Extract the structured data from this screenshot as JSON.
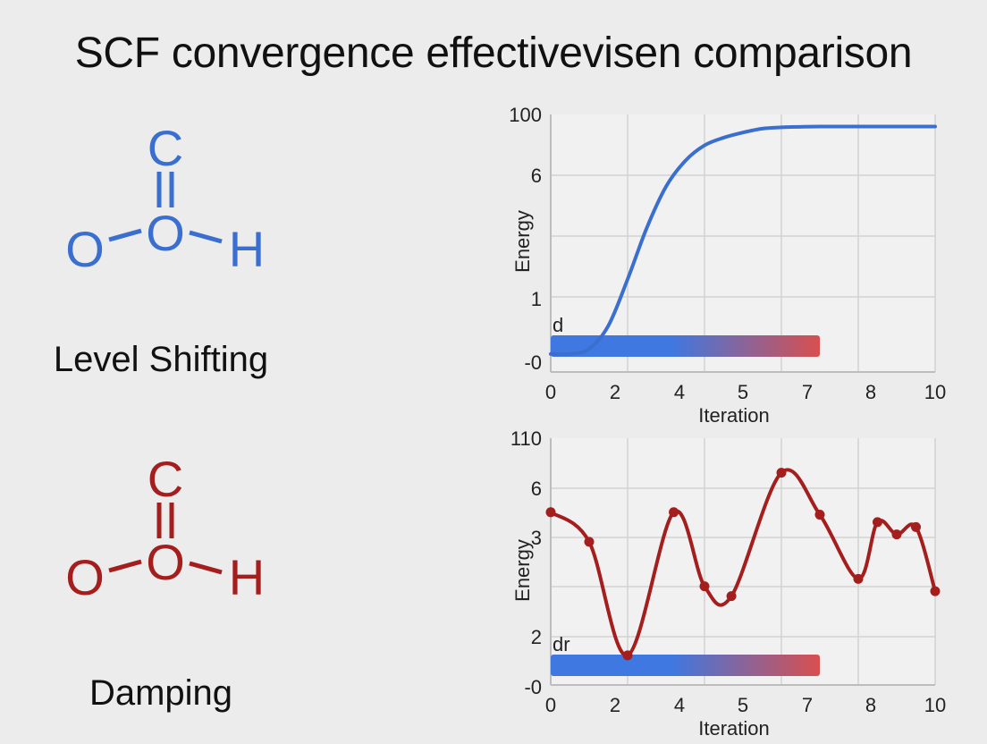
{
  "title": "SCF convergence effectivevisen comparison",
  "molecule": {
    "atom_top": "C",
    "atom_mid": "O",
    "atom_left": "O",
    "atom_right": "H"
  },
  "colors": {
    "level_shifting": "#3a6fd0",
    "damping": "#a51e1e",
    "bar_start": "#3f78e0",
    "bar_end": "#d84f4f"
  },
  "methods": [
    {
      "label": "Level Shifting"
    },
    {
      "label": "Damping"
    }
  ],
  "chart_data": [
    {
      "type": "line",
      "xlabel": "Iteration",
      "ylabel": "Energy",
      "x_ticks": [
        "0",
        "2",
        "4",
        "5",
        "7",
        "8",
        "10"
      ],
      "y_ticks": [
        "100",
        "6",
        "1",
        "-0"
      ],
      "bar_label": "d",
      "bar_range": [
        0,
        7
      ],
      "series": [
        {
          "x": [
            0,
            0.5,
            1,
            1.5,
            2,
            2.5,
            3,
            3.5,
            4,
            4.5,
            5,
            5.5,
            6,
            6.5,
            7,
            8,
            9,
            10
          ],
          "y": [
            0.07,
            0.07,
            0.09,
            0.18,
            0.36,
            0.56,
            0.72,
            0.82,
            0.88,
            0.91,
            0.93,
            0.945,
            0.95,
            0.952,
            0.953,
            0.953,
            0.953,
            0.953
          ],
          "markers": false
        }
      ]
    },
    {
      "type": "line",
      "xlabel": "Iteration",
      "ylabel": "Energy",
      "x_ticks": [
        "0",
        "2",
        "4",
        "5",
        "7",
        "8",
        "10"
      ],
      "y_ticks": [
        "110",
        "6",
        "3",
        "2",
        "-0"
      ],
      "bar_label": "dr",
      "bar_range": [
        0,
        7
      ],
      "series": [
        {
          "x": [
            0,
            1,
            2,
            3.2,
            4,
            4.7,
            6,
            7,
            8,
            8.5,
            9,
            9.5,
            10
          ],
          "y": [
            0.7,
            0.58,
            0.12,
            0.7,
            0.4,
            0.36,
            0.86,
            0.69,
            0.43,
            0.66,
            0.61,
            0.64,
            0.38
          ],
          "markers": true
        }
      ]
    }
  ]
}
